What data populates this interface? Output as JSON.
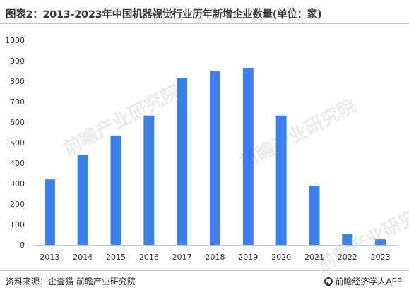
{
  "title": "图表2：2013-2023年中国机器视觉行业历年新增企业数量(单位：家)",
  "footer": {
    "source": "资料来源：企查猫 前瞻产业研究院",
    "brand": "前瞻经济学人APP"
  },
  "watermark": "前瞻产业研究院",
  "colors": {
    "bar": "#3b82e8",
    "axis": "#c8c8c8",
    "text": "#333333"
  },
  "chart_data": {
    "type": "bar",
    "categories": [
      "2013",
      "2014",
      "2015",
      "2016",
      "2017",
      "2018",
      "2019",
      "2020",
      "2021",
      "2022",
      "2023"
    ],
    "values": [
      320,
      440,
      535,
      632,
      815,
      848,
      865,
      632,
      290,
      53,
      27
    ],
    "ylim": [
      0,
      1000
    ],
    "yticks": [
      0,
      100,
      200,
      300,
      400,
      500,
      600,
      700,
      800,
      900,
      1000
    ],
    "xlabel": "",
    "ylabel": "",
    "grid": false,
    "legend": "none"
  }
}
